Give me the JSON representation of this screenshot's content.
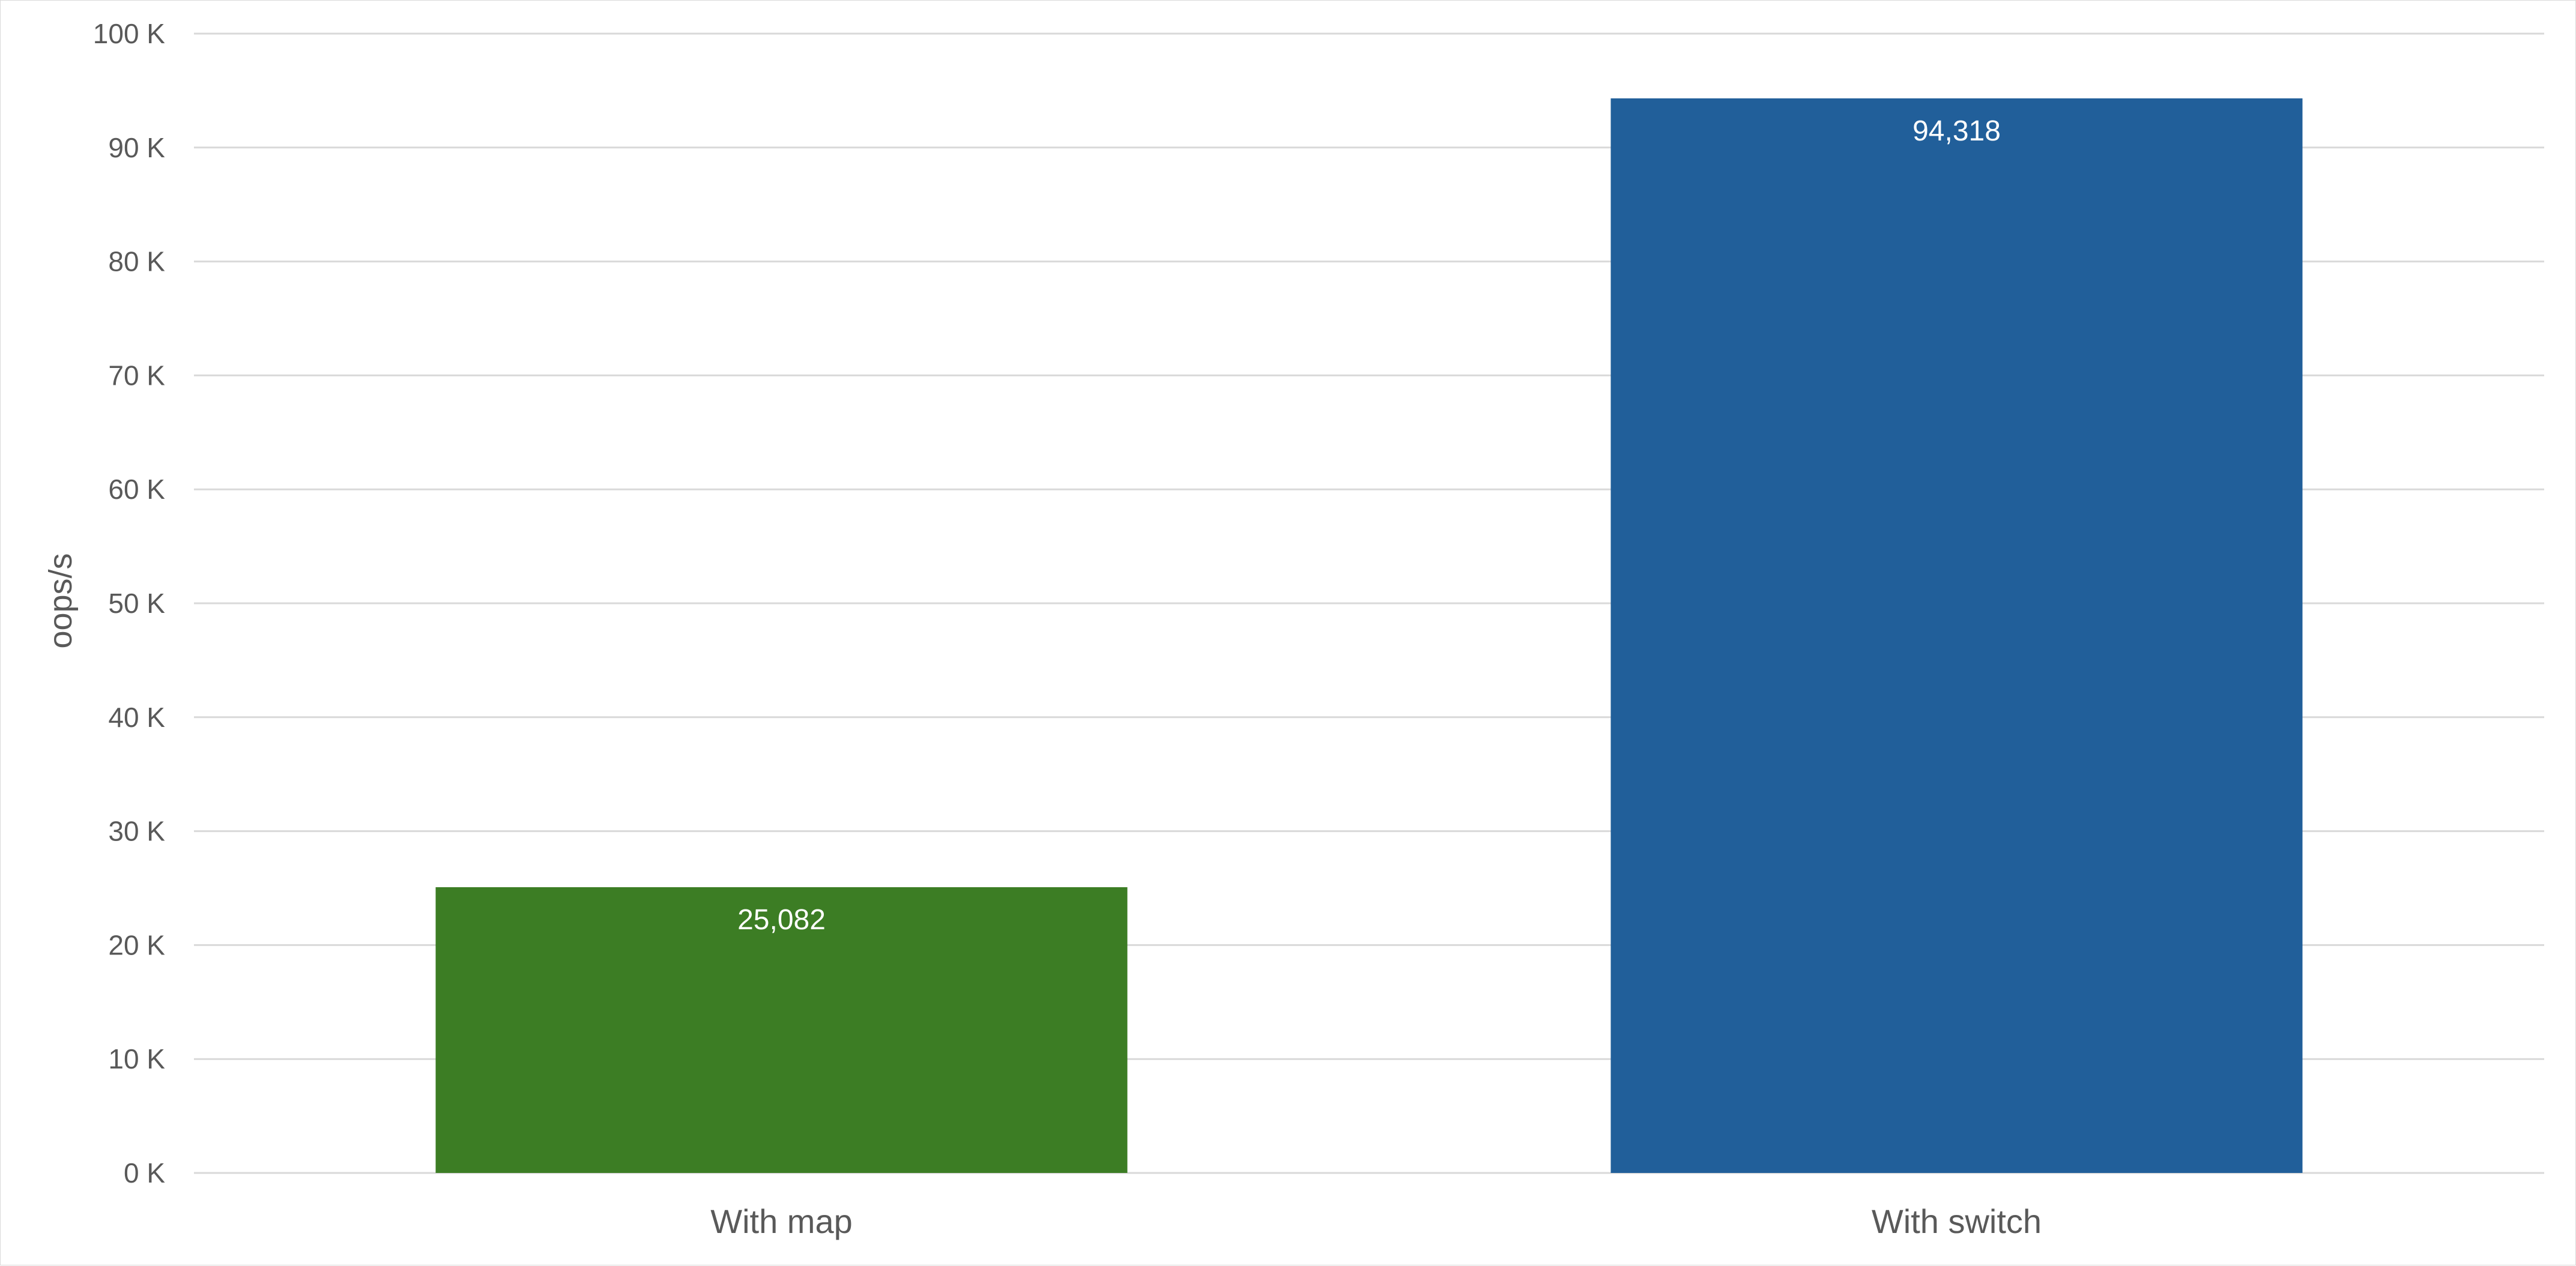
{
  "chart_data": {
    "type": "bar",
    "categories": [
      "With map",
      "With switch"
    ],
    "values": [
      25082,
      94318
    ],
    "data_labels": [
      "25,082",
      "94,318"
    ],
    "colors": [
      "#3c7d24",
      "#215f9a"
    ],
    "title": "",
    "xlabel": "",
    "ylabel": "oops/s",
    "ylim": [
      0,
      100000
    ],
    "yticks": [
      0,
      10000,
      20000,
      30000,
      40000,
      50000,
      60000,
      70000,
      80000,
      90000,
      100000
    ],
    "ytick_labels": [
      "0 K",
      "10 K",
      "20 K",
      "30 K",
      "40 K",
      "50 K",
      "60 K",
      "70 K",
      "80 K",
      "90 K",
      "100 K"
    ],
    "grid": true,
    "legend": "none"
  }
}
